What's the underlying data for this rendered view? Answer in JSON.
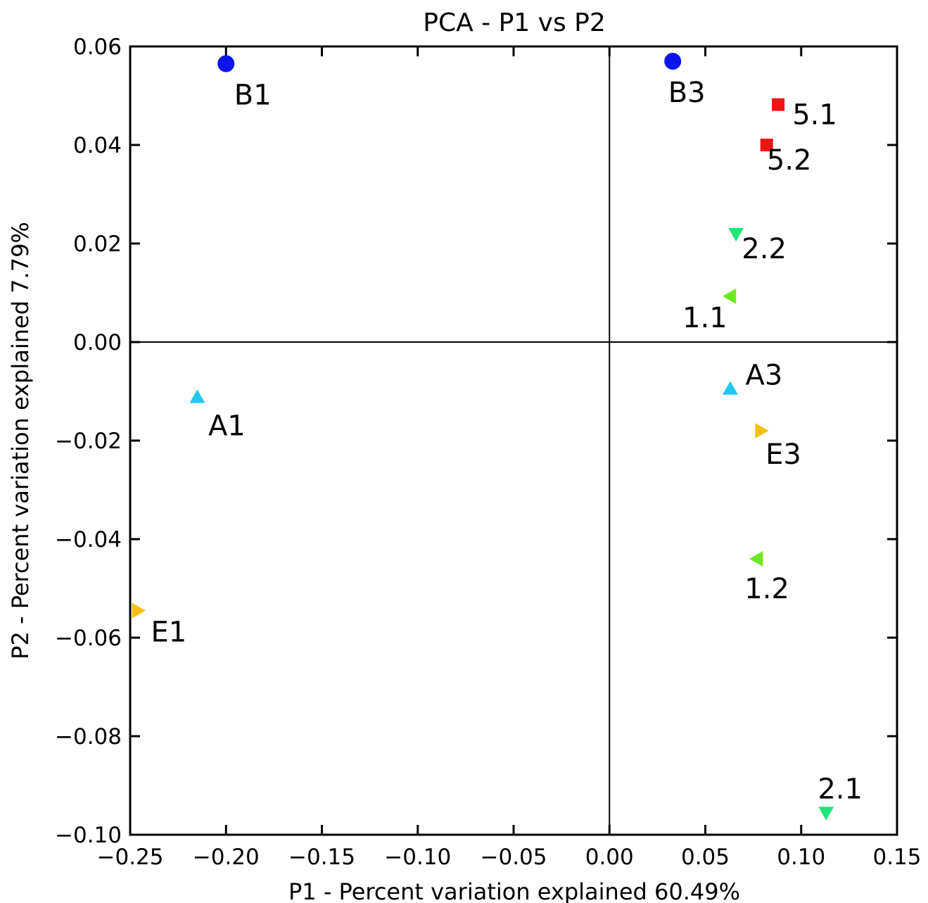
{
  "chart_data": {
    "type": "scatter",
    "title": "PCA - P1 vs P2",
    "xlabel": "P1 - Percent variation explained 60.49%",
    "ylabel": "P2 - Percent variation explained 7.79%",
    "xlim": [
      -0.25,
      0.15
    ],
    "ylim": [
      -0.1,
      0.06
    ],
    "x_ticks": [
      -0.25,
      -0.2,
      -0.15,
      -0.1,
      -0.05,
      0.0,
      0.05,
      0.1,
      0.15
    ],
    "x_tick_labels": [
      "−0.25",
      "−0.20",
      "−0.15",
      "−0.10",
      "−0.05",
      "0.00",
      "0.05",
      "0.10",
      "0.15"
    ],
    "y_ticks": [
      0.06,
      0.04,
      0.02,
      0.0,
      -0.02,
      -0.04,
      -0.06,
      -0.08,
      -0.1
    ],
    "y_tick_labels": [
      "0.06",
      "0.04",
      "0.02",
      "0.00",
      "−0.02",
      "−0.04",
      "−0.06",
      "−0.08",
      "−0.10"
    ],
    "grid": false,
    "reference_lines": {
      "x": 0,
      "y": 0
    },
    "points": [
      {
        "label": "B1",
        "x": -0.2,
        "y": 0.0565,
        "marker": "circle",
        "color": "#0a14f0"
      },
      {
        "label": "B3",
        "x": 0.033,
        "y": 0.057,
        "marker": "circle",
        "color": "#0a14f0"
      },
      {
        "label": "5.1",
        "x": 0.088,
        "y": 0.0482,
        "marker": "square",
        "color": "#f01414"
      },
      {
        "label": "5.2",
        "x": 0.082,
        "y": 0.04,
        "marker": "square",
        "color": "#f01414"
      },
      {
        "label": "2.2",
        "x": 0.066,
        "y": 0.022,
        "marker": "triangle-down",
        "color": "#1ee87a"
      },
      {
        "label": "1.1",
        "x": 0.063,
        "y": 0.0093,
        "marker": "triangle-left",
        "color": "#6ee81e"
      },
      {
        "label": "A3",
        "x": 0.063,
        "y": -0.0095,
        "marker": "triangle-up",
        "color": "#1ec8f0"
      },
      {
        "label": "A1",
        "x": -0.215,
        "y": -0.0112,
        "marker": "triangle-up",
        "color": "#1ec8f0"
      },
      {
        "label": "E3",
        "x": 0.079,
        "y": -0.018,
        "marker": "triangle-right",
        "color": "#f5c014"
      },
      {
        "label": "1.2",
        "x": 0.077,
        "y": -0.044,
        "marker": "triangle-left",
        "color": "#6ee81e"
      },
      {
        "label": "E1",
        "x": -0.246,
        "y": -0.0545,
        "marker": "triangle-right",
        "color": "#f5c014"
      },
      {
        "label": "2.1",
        "x": 0.113,
        "y": -0.0955,
        "marker": "triangle-down",
        "color": "#1ee87a"
      }
    ]
  }
}
